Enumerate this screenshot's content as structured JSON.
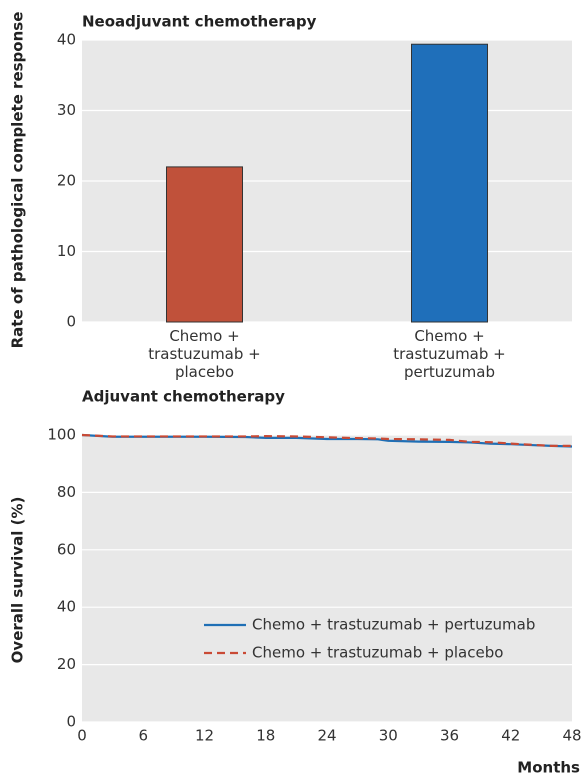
{
  "chart_data": [
    {
      "type": "bar",
      "title": "Neoadjuvant chemotherapy",
      "ylabel": "Rate of pathological complete response",
      "categories": [
        "Chemo + trastuzumab + placebo",
        "Chemo + trastuzumab + pertuzumab"
      ],
      "values": [
        22,
        39.4
      ],
      "colors": [
        "#c0513a",
        "#1f6fba"
      ],
      "ylim": [
        0,
        40
      ],
      "yticks": [
        0,
        10,
        20,
        30,
        40
      ],
      "grid": true
    },
    {
      "type": "line",
      "title": "Adjuvant chemotherapy",
      "ylabel": "Overall survival (%)",
      "xlabel": "Months",
      "x": [
        0,
        3,
        6,
        12,
        16,
        18,
        21,
        24,
        27,
        29,
        30,
        33,
        36,
        38,
        40,
        42,
        44,
        46,
        48
      ],
      "series": [
        {
          "name": "Chemo + trastuzumab + pertuzumab",
          "color": "#1f6fb5",
          "dashed": false,
          "values": [
            100,
            99.4,
            99.4,
            99.4,
            99.3,
            99,
            99,
            98.6,
            98.6,
            98.5,
            98,
            97.7,
            97.6,
            97.4,
            97,
            96.8,
            96.5,
            96.2,
            96
          ]
        },
        {
          "name": "Chemo + trastuzumab + placebo",
          "color": "#c94a35",
          "dashed": true,
          "values": [
            100,
            99.5,
            99.5,
            99.5,
            99.5,
            99.6,
            99.5,
            99.2,
            98.9,
            98.8,
            98.6,
            98.5,
            98.3,
            97.6,
            97.5,
            97,
            96.6,
            96.2,
            96.2
          ]
        }
      ],
      "xlim": [
        0,
        48
      ],
      "xticks": [
        0,
        6,
        12,
        18,
        24,
        30,
        36,
        42,
        48
      ],
      "ylim": [
        0,
        100
      ],
      "yticks": [
        0,
        20,
        40,
        60,
        80,
        100
      ],
      "grid": true,
      "legend": "lower right"
    }
  ]
}
